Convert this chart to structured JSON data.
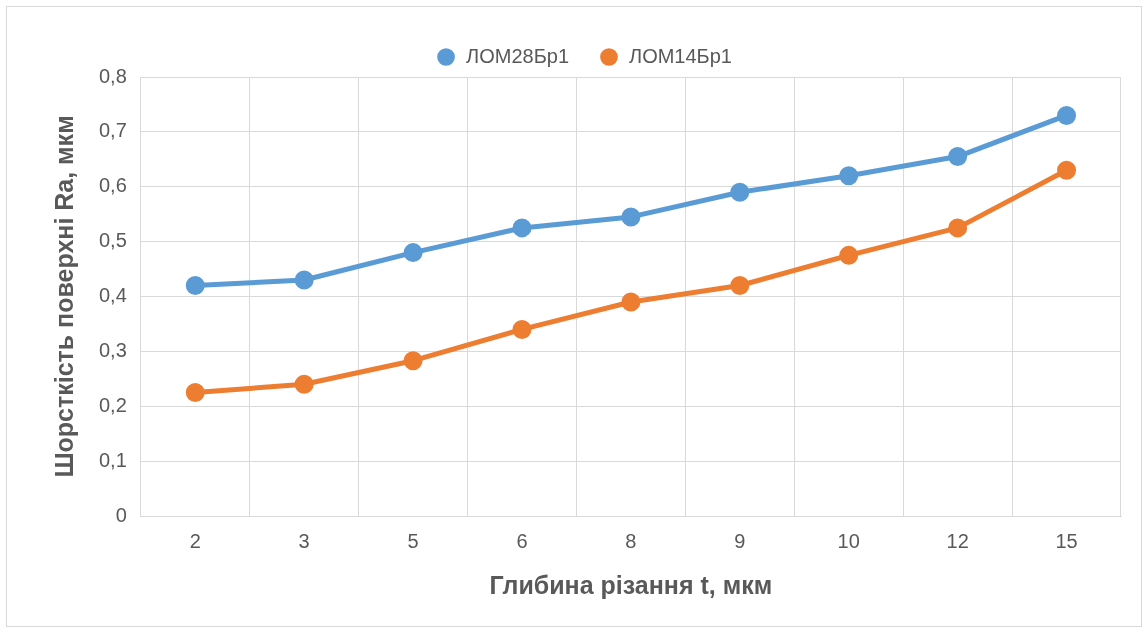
{
  "chart_data": {
    "type": "line",
    "xlabel": "Глибина різання t, мкм",
    "ylabel": "Шорсткість поверхні Ra, мкм",
    "categories": [
      "2",
      "3",
      "5",
      "6",
      "8",
      "9",
      "10",
      "12",
      "15"
    ],
    "series": [
      {
        "name": "ЛОМ28Бр1",
        "color": "#5b9bd5",
        "values": [
          0.42,
          0.43,
          0.48,
          0.525,
          0.545,
          0.59,
          0.62,
          0.655,
          0.73
        ]
      },
      {
        "name": "ЛОМ14Бр1",
        "color": "#ed7d31",
        "values": [
          0.225,
          0.24,
          0.283,
          0.34,
          0.39,
          0.42,
          0.475,
          0.525,
          0.63
        ]
      }
    ],
    "ylim": [
      0,
      0.8
    ],
    "yticks": [
      0,
      {
        "value": 0.1,
        "label": "0,1"
      },
      {
        "value": 0.2,
        "label": "0,2"
      },
      {
        "value": 0.3,
        "label": "0,3"
      },
      {
        "value": 0.4,
        "label": "0,4"
      },
      {
        "value": 0.5,
        "label": "0,5"
      },
      {
        "value": 0.6,
        "label": "0,6"
      },
      {
        "value": 0.7,
        "label": "0,7"
      },
      {
        "value": 0.8,
        "label": "0,8"
      }
    ],
    "grid": true,
    "legend": "top",
    "marker": "circle",
    "line_style": "solid"
  }
}
